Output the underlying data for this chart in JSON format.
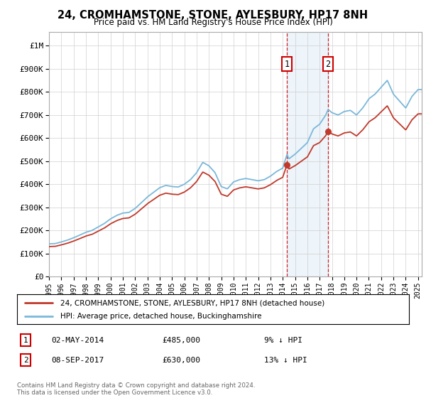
{
  "title": "24, CROMHAMSTONE, STONE, AYLESBURY, HP17 8NH",
  "subtitle": "Price paid vs. HM Land Registry's House Price Index (HPI)",
  "ylabel_ticks": [
    "£0",
    "£100K",
    "£200K",
    "£300K",
    "£400K",
    "£500K",
    "£600K",
    "£700K",
    "£800K",
    "£900K",
    "£1M"
  ],
  "ytick_values": [
    0,
    100000,
    200000,
    300000,
    400000,
    500000,
    600000,
    700000,
    800000,
    900000,
    1000000
  ],
  "ylim": [
    0,
    1060000
  ],
  "legend_line1": "24, CROMHAMSTONE, STONE, AYLESBURY, HP17 8NH (detached house)",
  "legend_line2": "HPI: Average price, detached house, Buckinghamshire",
  "sale1_date": "02-MAY-2014",
  "sale1_price": 485000,
  "sale1_year": 2014.35,
  "sale2_date": "08-SEP-2017",
  "sale2_price": 630000,
  "sale2_year": 2017.69,
  "sale1_note": "9% ↓ HPI",
  "sale2_note": "13% ↓ HPI",
  "footer": "Contains HM Land Registry data © Crown copyright and database right 2024.\nThis data is licensed under the Open Government Licence v3.0.",
  "hpi_color": "#7ab8d9",
  "price_color": "#c0392b",
  "background_color": "#ffffff",
  "grid_color": "#d0d0d0",
  "shade_color": "#c6dbef",
  "xlim_left": 1995,
  "xlim_right": 2025.3
}
